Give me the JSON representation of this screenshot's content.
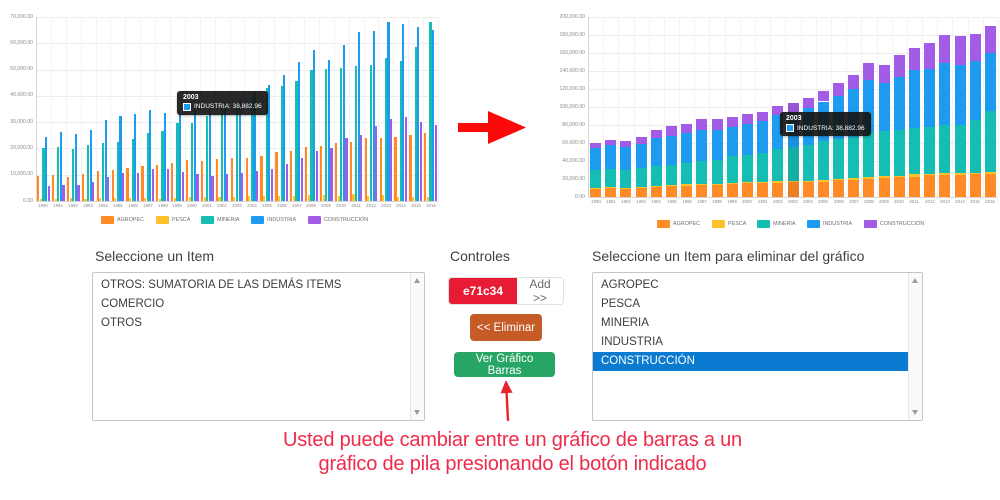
{
  "chart_data": [
    {
      "id": "grouped",
      "type": "bar",
      "title": "",
      "categories": [
        "1990",
        "1991",
        "1992",
        "1993",
        "1994",
        "1995",
        "1996",
        "1997",
        "1998",
        "1999",
        "2000",
        "2001",
        "2002",
        "2003",
        "2004",
        "2005",
        "2006",
        "2007",
        "2008",
        "2009",
        "2010",
        "2011",
        "2012",
        "2013",
        "2014",
        "2015",
        "2016"
      ],
      "series": [
        {
          "name": "AGROPEC",
          "color": "#fe8b25",
          "values": [
            9500,
            10000,
            9300,
            10100,
            11300,
            11900,
            12700,
            13200,
            13600,
            14500,
            15500,
            15300,
            16100,
            16400,
            16300,
            17000,
            18500,
            19000,
            20500,
            20900,
            21900,
            22600,
            24000,
            24100,
            24500,
            25100,
            25800
          ]
        },
        {
          "name": "PESCA",
          "color": "#fdc129",
          "values": [
            800,
            900,
            1000,
            900,
            1300,
            1000,
            1200,
            1300,
            800,
            1300,
            1600,
            1500,
            1500,
            1400,
            1800,
            1800,
            2000,
            1900,
            2100,
            2100,
            1900,
            2700,
            1800,
            2100,
            1700,
            1600,
            1700
          ]
        },
        {
          "name": "MINERIA",
          "color": "#16bdb2",
          "values": [
            20000,
            20500,
            19800,
            21400,
            21900,
            22600,
            23700,
            25800,
            26700,
            29500,
            29700,
            32400,
            35800,
            37300,
            39300,
            43000,
            43800,
            45700,
            49800,
            50100,
            50600,
            51200,
            51800,
            54300,
            53400,
            58400,
            68000
          ]
        },
        {
          "name": "INDUSTRIA",
          "color": "#1d9bf0",
          "values": [
            24500,
            26300,
            25500,
            26900,
            30700,
            32400,
            33000,
            34500,
            33400,
            33000,
            34800,
            35300,
            37500,
            38882.96,
            41600,
            44300,
            47800,
            52900,
            57400,
            53600,
            59200,
            64300,
            64600,
            68100,
            67400,
            66200,
            65000
          ]
        },
        {
          "name": "CONSTRUCCIÓN",
          "color": "#a25ce6",
          "values": [
            5700,
            5900,
            6200,
            7100,
            9300,
            10800,
            10600,
            12200,
            12200,
            11100,
            10100,
            9700,
            10300,
            10800,
            11300,
            12200,
            14100,
            16300,
            19000,
            20200,
            23900,
            25000,
            28600,
            31200,
            31800,
            30100,
            29000
          ]
        }
      ],
      "ylim": [
        0,
        70000
      ],
      "ytick_step": 10000,
      "grid": true,
      "legend_position": "bottom",
      "tooltip": {
        "title": "2003",
        "label": "INDUSTRIA",
        "value": "38,882.96",
        "swatch_color": "#1d9bf0"
      }
    },
    {
      "id": "stacked",
      "type": "stacked-bar",
      "title": "",
      "categories": [
        "1990",
        "1991",
        "1992",
        "1993",
        "1994",
        "1995",
        "1996",
        "1997",
        "1998",
        "1999",
        "2000",
        "2001",
        "2002",
        "2003",
        "2004",
        "2005",
        "2006",
        "2007",
        "2008",
        "2009",
        "2010",
        "2011",
        "2012",
        "2013",
        "2014",
        "2015",
        "2016"
      ],
      "series": [
        {
          "name": "AGROPEC",
          "color": "#fe8b25",
          "values": [
            9500,
            10000,
            9300,
            10100,
            11300,
            11900,
            12700,
            13200,
            13600,
            14500,
            15500,
            15300,
            16100,
            16400,
            16300,
            17000,
            18500,
            19000,
            20500,
            20900,
            21900,
            22600,
            24000,
            24100,
            24500,
            25100,
            25800
          ]
        },
        {
          "name": "PESCA",
          "color": "#fdc129",
          "values": [
            800,
            900,
            1000,
            900,
            1300,
            1000,
            1200,
            1300,
            800,
            1300,
            1600,
            1500,
            1500,
            1400,
            1800,
            1800,
            2000,
            1900,
            2100,
            2100,
            1900,
            2700,
            1800,
            2100,
            1700,
            1600,
            1700
          ]
        },
        {
          "name": "MINERIA",
          "color": "#16bdb2",
          "values": [
            20000,
            20500,
            19800,
            21400,
            21900,
            22600,
            23700,
            25800,
            26700,
            29500,
            29700,
            32400,
            35800,
            37300,
            39300,
            43000,
            43800,
            45700,
            49800,
            50100,
            50600,
            51200,
            51800,
            54300,
            53400,
            58400,
            68000
          ]
        },
        {
          "name": "INDUSTRIA",
          "color": "#1d9bf0",
          "values": [
            24500,
            26300,
            25500,
            26900,
            30700,
            32400,
            33000,
            34500,
            33400,
            33000,
            34800,
            35300,
            37500,
            38882.96,
            41600,
            44300,
            47800,
            52900,
            57400,
            53600,
            59200,
            64300,
            64600,
            68100,
            67400,
            66200,
            65000
          ]
        },
        {
          "name": "CONSTRUCCIÓN",
          "color": "#a25ce6",
          "values": [
            5700,
            5900,
            6200,
            7100,
            9300,
            10800,
            10600,
            12200,
            12200,
            11100,
            10100,
            9700,
            10300,
            10800,
            11300,
            12200,
            14100,
            16300,
            19000,
            20200,
            23900,
            25000,
            28600,
            31200,
            31800,
            30100,
            29000
          ]
        }
      ],
      "ylim": [
        0,
        200000
      ],
      "ytick_step": 20000,
      "grid": true,
      "legend_position": "bottom",
      "tooltip": {
        "title": "2003",
        "label": "INDUSTRIA",
        "value": "38,882.96",
        "swatch_color": "#1d9bf0"
      }
    }
  ],
  "panels": {
    "item_selector": {
      "title": "Seleccione un Item",
      "items": [
        "OTROS: SUMATORIA DE LAS DEMÁS ITEMS",
        "COMERCIO",
        "OTROS"
      ]
    },
    "controls": {
      "title": "Controles",
      "color_value": "e71c34",
      "color_hex": "#e71c34",
      "add_label": "Add >>",
      "remove_label": "<< Eliminar",
      "toggle_label": "Ver Gráfico Barras"
    },
    "remove_selector": {
      "title": "Seleccione un Item para eliminar del gráfico",
      "items": [
        "AGROPEC",
        "PESCA",
        "MINERIA",
        "INDUSTRIA",
        "CONSTRUCCIÓN"
      ],
      "selected_index": 4,
      "selection_color": "#0b7bd2"
    }
  },
  "caption": {
    "line1": "Usted puede cambiar entre un gráfico de barras a un",
    "line2": "gráfico de pila presionando el botón indicado",
    "color": "#ee2b4b"
  },
  "colors": {
    "big_arrow": "#fb0a0a",
    "indicator_arrow": "#e8232b"
  }
}
